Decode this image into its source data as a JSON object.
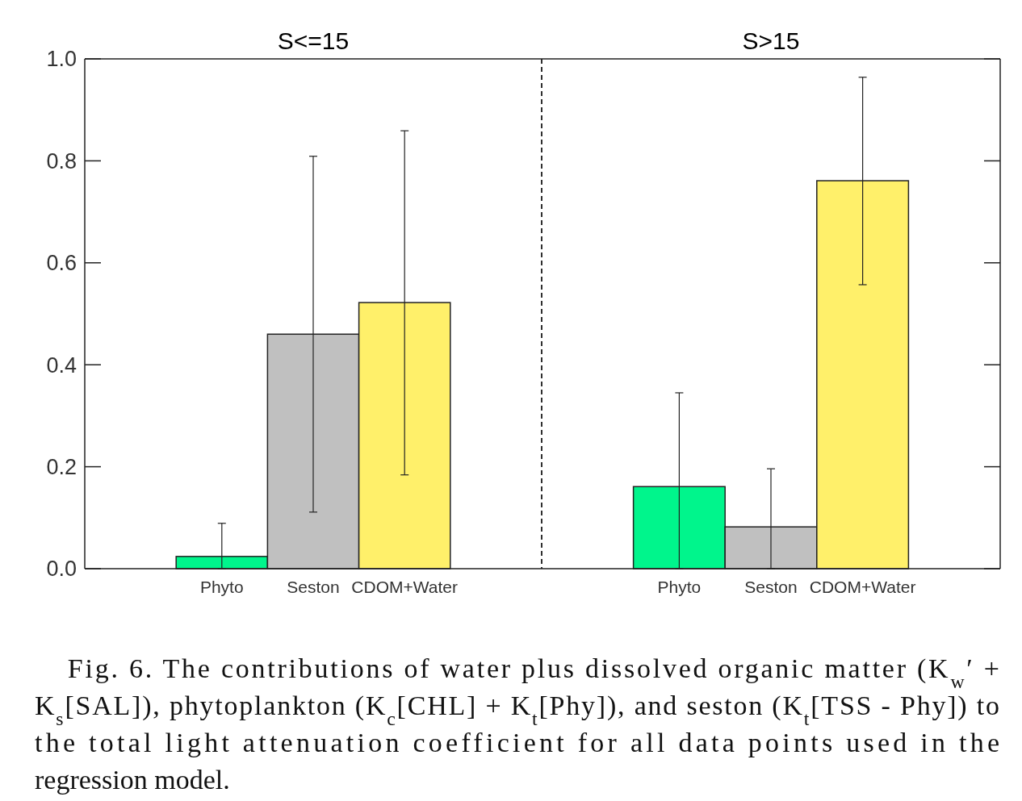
{
  "chart_data": [
    {
      "type": "bar",
      "title": "S<=15",
      "categories": [
        null,
        "Phyto",
        "Seston",
        "CDOM+Water",
        null
      ],
      "values": [
        null,
        0.024,
        0.46,
        0.522,
        null
      ],
      "colors": [
        null,
        "#00f58c",
        "#c0c0c0",
        "#fff06a",
        null
      ],
      "errors": [
        null,
        [
          0,
          0.089
        ],
        [
          0.111,
          0.809
        ],
        [
          0.184,
          0.859
        ],
        null
      ],
      "ylim": [
        0,
        1
      ],
      "yticks": [
        {
          "value": 0,
          "label": "0.0"
        },
        {
          "value": 0.2,
          "label": "0.2"
        },
        {
          "value": 0.4,
          "label": "0.4"
        },
        {
          "value": 0.6,
          "label": "0.6"
        },
        {
          "value": 0.8,
          "label": "0.8"
        },
        {
          "value": 1,
          "label": "1.0"
        }
      ],
      "annotations": [
        "Fig. 6.  The contributions of water plus dissolved organic matter (K$_{w}$′ + K$_{s}$[SAL]), phytoplankton (K$_{c}$[CHL] + K$_{t}$[Phy]), and seston (K$_{t}$[TSS - Phy]) to the total light attenuation coefficient for all data points used in the regression model."
      ]
    },
    {
      "type": "bar",
      "title": "S>15",
      "categories": [
        null,
        "Phyto",
        "Seston",
        "CDOM+Water",
        null
      ],
      "values": [
        null,
        0.161,
        0.082,
        0.761,
        null
      ],
      "colors": [
        null,
        "#00f58c",
        "#c0c0c0",
        "#fff06a",
        null
      ],
      "errors": [
        null,
        [
          0,
          0.345
        ],
        [
          0,
          0.196
        ],
        [
          0.557,
          0.964
        ],
        null
      ],
      "ylim": [
        0,
        1
      ],
      "yticks": [
        {
          "value": 0,
          "label": null
        },
        {
          "value": 0.2,
          "label": null
        },
        {
          "value": 0.4,
          "label": null
        },
        {
          "value": 0.6,
          "label": null
        },
        {
          "value": 0.8,
          "label": null
        },
        {
          "value": 1,
          "label": null
        }
      ],
      "tick_labels": "x"
    }
  ]
}
